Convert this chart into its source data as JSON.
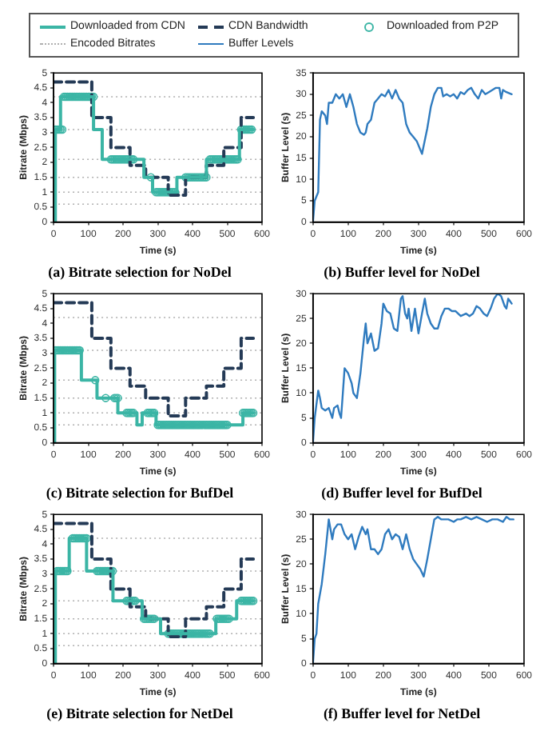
{
  "chart_data": [
    {
      "type": "step",
      "title": "(a) Bitrate selection for NoDel",
      "xlabel": "Time (s)",
      "ylabel": "Bitrate (Mbps)",
      "xlim": [
        0,
        600
      ],
      "xticks": [
        0,
        100,
        200,
        300,
        400,
        500,
        600
      ],
      "ylim": [
        0,
        5
      ],
      "yticks": [
        0,
        0.5,
        1,
        1.5,
        2,
        2.5,
        3,
        3.5,
        4,
        4.5,
        5
      ],
      "legend": "top",
      "ref_lines": [
        {
          "axis": "y",
          "value": 0.6,
          "label": "Encoded Bitrates",
          "color": "#b0b0b0",
          "line_style": "dotted"
        },
        {
          "axis": "y",
          "value": 1,
          "color": "#b0b0b0",
          "line_style": "dotted"
        },
        {
          "axis": "y",
          "value": 1.5,
          "color": "#b0b0b0",
          "line_style": "dotted"
        },
        {
          "axis": "y",
          "value": 2.1,
          "color": "#b0b0b0",
          "line_style": "dotted"
        },
        {
          "axis": "y",
          "value": 3.1,
          "color": "#b0b0b0",
          "line_style": "dotted"
        },
        {
          "axis": "y",
          "value": 4.2,
          "color": "#b0b0b0",
          "line_style": "dotted"
        }
      ],
      "series": [
        {
          "name": "Downloaded from CDN",
          "color": "#3bb5a5",
          "line_style": "solid",
          "x": [
            0,
            5,
            20,
            115,
            140,
            260,
            285,
            355,
            440,
            535,
            575
          ],
          "values": [
            0,
            3.1,
            4.2,
            3.1,
            2.1,
            1.5,
            1,
            1.5,
            2.1,
            3.1,
            3.1
          ]
        },
        {
          "name": "CDN Bandwidth",
          "color": "#243a56",
          "line_style": "dashed",
          "x": [
            0,
            110,
            165,
            220,
            265,
            330,
            380,
            440,
            490,
            540,
            575
          ],
          "values": [
            4.7,
            3.5,
            2.5,
            1.9,
            1.5,
            0.9,
            1.5,
            1.9,
            2.5,
            3.5,
            3.5
          ]
        },
        {
          "name": "Downloaded from P2P",
          "type": "scatter",
          "color": "#3bb5a5",
          "marker": "circle",
          "x": [
            5,
            10,
            15,
            20,
            25,
            30,
            35,
            40,
            45,
            50,
            55,
            60,
            65,
            70,
            75,
            80,
            85,
            90,
            95,
            100,
            105,
            110,
            115,
            165,
            170,
            175,
            180,
            185,
            190,
            195,
            200,
            205,
            210,
            215,
            220,
            225,
            230,
            280,
            295,
            300,
            305,
            310,
            315,
            320,
            325,
            330,
            335,
            340,
            345,
            350,
            380,
            385,
            390,
            395,
            400,
            405,
            410,
            415,
            420,
            425,
            430,
            435,
            440,
            450,
            455,
            460,
            465,
            470,
            475,
            480,
            485,
            490,
            495,
            500,
            505,
            510,
            515,
            520,
            525,
            530,
            540,
            545,
            550,
            555,
            560,
            565,
            570
          ],
          "values": [
            3.1,
            3.1,
            3.1,
            3.1,
            3.1,
            4.2,
            4.2,
            4.2,
            4.2,
            4.2,
            4.2,
            4.2,
            4.2,
            4.2,
            4.2,
            4.2,
            4.2,
            4.2,
            4.2,
            4.2,
            4.2,
            4.2,
            4.2,
            2.1,
            2.1,
            2.1,
            2.1,
            2.1,
            2.1,
            2.1,
            2.1,
            2.1,
            2.1,
            2.1,
            2.1,
            2.1,
            2.1,
            1.5,
            1,
            1,
            1,
            1,
            1,
            1,
            1,
            1,
            1,
            1,
            1,
            1,
            1.5,
            1.5,
            1.5,
            1.5,
            1.5,
            1.5,
            1.5,
            1.5,
            1.5,
            1.5,
            1.5,
            1.5,
            1.5,
            2.1,
            2.1,
            2.1,
            2.1,
            2.1,
            2.1,
            2.1,
            2.1,
            2.1,
            2.1,
            2.1,
            2.1,
            2.1,
            2.1,
            2.1,
            2.1,
            2.1,
            3.1,
            3.1,
            3.1,
            3.1,
            3.1,
            3.1,
            3.1
          ]
        }
      ]
    },
    {
      "type": "line",
      "title": "(b) Buffer level for NoDel",
      "xlabel": "Time (s)",
      "ylabel": "Buffer Level (s)",
      "xlim": [
        0,
        600
      ],
      "xticks": [
        0,
        100,
        200,
        300,
        400,
        500,
        600
      ],
      "ylim": [
        0,
        35
      ],
      "yticks": [
        0,
        5,
        10,
        15,
        20,
        25,
        30,
        35
      ],
      "legend": "top",
      "series": [
        {
          "name": "Buffer Levels",
          "color": "#2f7bbf",
          "x": [
            0,
            5,
            15,
            20,
            25,
            35,
            40,
            45,
            55,
            65,
            75,
            85,
            95,
            105,
            115,
            125,
            135,
            145,
            150,
            155,
            165,
            175,
            185,
            195,
            205,
            215,
            225,
            235,
            245,
            255,
            265,
            275,
            285,
            295,
            305,
            310,
            315,
            325,
            335,
            345,
            355,
            365,
            370,
            380,
            390,
            400,
            410,
            420,
            430,
            440,
            450,
            460,
            470,
            480,
            490,
            500,
            510,
            520,
            530,
            535,
            540,
            550,
            565
          ],
          "values": [
            0,
            5,
            7,
            24,
            26,
            25,
            23,
            28,
            28,
            30,
            29,
            30,
            27,
            30,
            27,
            23,
            21,
            20.5,
            21,
            23,
            24,
            28,
            29,
            30,
            29.5,
            31,
            29,
            31,
            29,
            28,
            23,
            21,
            20,
            19,
            17,
            16,
            18,
            22,
            27,
            30,
            31.5,
            31.5,
            29.5,
            30,
            29.5,
            30,
            29,
            30.5,
            30,
            31,
            31.5,
            30,
            29,
            31,
            30,
            30.5,
            31,
            31.5,
            31.5,
            29,
            31,
            30.5,
            30
          ]
        }
      ]
    },
    {
      "type": "step",
      "title": "(c) Bitrate selection for BufDel",
      "xlabel": "Time (s)",
      "ylabel": "Bitrate (Mbps)",
      "xlim": [
        0,
        600
      ],
      "xticks": [
        0,
        100,
        200,
        300,
        400,
        500,
        600
      ],
      "ylim": [
        0,
        5
      ],
      "yticks": [
        0,
        0.5,
        1,
        1.5,
        2,
        2.5,
        3,
        3.5,
        4,
        4.5,
        5
      ],
      "ref_lines": [
        {
          "axis": "y",
          "value": 0.6,
          "color": "#b0b0b0",
          "line_style": "dotted"
        },
        {
          "axis": "y",
          "value": 1,
          "color": "#b0b0b0",
          "line_style": "dotted"
        },
        {
          "axis": "y",
          "value": 1.5,
          "color": "#b0b0b0",
          "line_style": "dotted"
        },
        {
          "axis": "y",
          "value": 2.1,
          "color": "#b0b0b0",
          "line_style": "dotted"
        },
        {
          "axis": "y",
          "value": 3.1,
          "color": "#b0b0b0",
          "line_style": "dotted"
        },
        {
          "axis": "y",
          "value": 4.2,
          "color": "#b0b0b0",
          "line_style": "dotted"
        }
      ],
      "series": [
        {
          "color": "#3bb5a5",
          "line_style": "solid",
          "x": [
            0,
            3,
            80,
            125,
            185,
            240,
            255,
            295,
            545,
            575
          ],
          "values": [
            0,
            3.1,
            2.1,
            1.5,
            1,
            0.6,
            1,
            0.6,
            1,
            1
          ]
        },
        {
          "color": "#243a56",
          "line_style": "dashed",
          "x": [
            0,
            110,
            165,
            220,
            265,
            330,
            380,
            440,
            490,
            540,
            575
          ],
          "values": [
            4.7,
            3.5,
            2.5,
            1.9,
            1.5,
            0.9,
            1.5,
            1.9,
            2.5,
            3.5,
            3.5
          ]
        },
        {
          "type": "scatter",
          "color": "#3bb5a5",
          "marker": "circle",
          "x": [
            5,
            10,
            15,
            20,
            25,
            30,
            35,
            40,
            45,
            50,
            55,
            60,
            65,
            70,
            75,
            120,
            150,
            175,
            180,
            185,
            210,
            215,
            220,
            225,
            230,
            270,
            275,
            280,
            285,
            290,
            300,
            305,
            310,
            315,
            320,
            325,
            330,
            335,
            340,
            345,
            350,
            355,
            360,
            365,
            370,
            375,
            380,
            385,
            390,
            395,
            400,
            405,
            410,
            415,
            420,
            425,
            430,
            435,
            440,
            445,
            450,
            455,
            460,
            465,
            470,
            475,
            480,
            485,
            490,
            495,
            500,
            545,
            550,
            555,
            560,
            565,
            570,
            575
          ],
          "values": [
            3.1,
            3.1,
            3.1,
            3.1,
            3.1,
            3.1,
            3.1,
            3.1,
            3.1,
            3.1,
            3.1,
            3.1,
            3.1,
            3.1,
            3.1,
            2.1,
            1.5,
            1.5,
            1.5,
            1.5,
            1,
            1,
            1,
            1,
            1,
            1,
            1,
            1,
            1,
            1,
            0.6,
            0.6,
            0.6,
            0.6,
            0.6,
            0.6,
            0.6,
            0.6,
            0.6,
            0.6,
            0.6,
            0.6,
            0.6,
            0.6,
            0.6,
            0.6,
            0.6,
            0.6,
            0.6,
            0.6,
            0.6,
            0.6,
            0.6,
            0.6,
            0.6,
            0.6,
            0.6,
            0.6,
            0.6,
            0.6,
            0.6,
            0.6,
            0.6,
            0.6,
            0.6,
            0.6,
            0.6,
            0.6,
            0.6,
            0.6,
            0.6,
            1,
            1,
            1,
            1,
            1,
            1,
            1
          ]
        }
      ]
    },
    {
      "type": "line",
      "title": "(d) Buffer level for BufDel",
      "xlabel": "Time (s)",
      "ylabel": "Buffer Level (s)",
      "xlim": [
        0,
        600
      ],
      "xticks": [
        0,
        100,
        200,
        300,
        400,
        500,
        600
      ],
      "ylim": [
        0,
        30
      ],
      "yticks": [
        0,
        5,
        10,
        15,
        20,
        25,
        30
      ],
      "series": [
        {
          "color": "#2f7bbf",
          "x": [
            0,
            5,
            15,
            20,
            25,
            35,
            45,
            55,
            60,
            70,
            75,
            80,
            85,
            90,
            100,
            110,
            115,
            125,
            135,
            145,
            150,
            155,
            165,
            175,
            185,
            195,
            200,
            210,
            220,
            230,
            240,
            250,
            255,
            262,
            268,
            272,
            280,
            290,
            300,
            310,
            318,
            325,
            335,
            345,
            355,
            365,
            375,
            385,
            395,
            405,
            420,
            435,
            445,
            455,
            465,
            475,
            485,
            495,
            505,
            515,
            525,
            535,
            545,
            550,
            555,
            560,
            565
          ],
          "values": [
            0,
            5,
            10.5,
            9,
            7,
            6.5,
            7,
            5,
            7,
            7.5,
            6,
            5,
            10,
            15,
            14,
            12,
            10,
            9,
            14,
            21,
            24,
            20,
            22,
            18.5,
            19,
            24,
            28,
            26.5,
            26,
            23,
            22.5,
            29,
            29.5,
            26,
            25,
            27,
            22.5,
            27,
            22,
            26,
            29,
            26,
            24,
            23,
            23,
            25.5,
            27,
            27,
            26.5,
            26.5,
            25.5,
            26,
            25.5,
            26,
            27.5,
            27,
            26,
            25.5,
            27,
            29,
            30,
            29.5,
            27.5,
            27,
            29,
            28.5,
            28
          ]
        }
      ]
    },
    {
      "type": "step",
      "title": "(e) Bitrate selection for NetDel",
      "xlabel": "Time (s)",
      "ylabel": "Bitrate (Mbps)",
      "xlim": [
        0,
        600
      ],
      "xticks": [
        0,
        100,
        200,
        300,
        400,
        500,
        600
      ],
      "ylim": [
        0,
        5
      ],
      "yticks": [
        0,
        0.5,
        1,
        1.5,
        2,
        2.5,
        3,
        3.5,
        4,
        4.5,
        5
      ],
      "ref_lines": [
        {
          "axis": "y",
          "value": 0.6,
          "color": "#b0b0b0",
          "line_style": "dotted"
        },
        {
          "axis": "y",
          "value": 1,
          "color": "#b0b0b0",
          "line_style": "dotted"
        },
        {
          "axis": "y",
          "value": 1.5,
          "color": "#b0b0b0",
          "line_style": "dotted"
        },
        {
          "axis": "y",
          "value": 2.1,
          "color": "#b0b0b0",
          "line_style": "dotted"
        },
        {
          "axis": "y",
          "value": 3.1,
          "color": "#b0b0b0",
          "line_style": "dotted"
        },
        {
          "axis": "y",
          "value": 4.2,
          "color": "#b0b0b0",
          "line_style": "dotted"
        }
      ],
      "series": [
        {
          "color": "#3bb5a5",
          "line_style": "solid",
          "x": [
            0,
            5,
            45,
            95,
            171,
            255,
            308,
            467,
            527,
            575
          ],
          "values": [
            0,
            3.1,
            4.2,
            3.1,
            2.1,
            1.5,
            1,
            1.5,
            2.1,
            2.1
          ]
        },
        {
          "color": "#243a56",
          "line_style": "dashed",
          "x": [
            0,
            110,
            165,
            220,
            265,
            330,
            380,
            440,
            490,
            540,
            575
          ],
          "values": [
            4.7,
            3.5,
            2.5,
            1.9,
            1.5,
            0.9,
            1.5,
            1.9,
            2.5,
            3.5,
            3.5
          ]
        },
        {
          "type": "scatter",
          "color": "#3bb5a5",
          "marker": "circle",
          "x": [
            10,
            15,
            20,
            25,
            30,
            35,
            40,
            55,
            60,
            65,
            70,
            75,
            80,
            85,
            90,
            95,
            125,
            130,
            135,
            140,
            145,
            150,
            155,
            160,
            165,
            170,
            210,
            215,
            220,
            225,
            230,
            235,
            260,
            265,
            270,
            275,
            280,
            285,
            290,
            330,
            335,
            340,
            345,
            350,
            355,
            360,
            365,
            370,
            375,
            380,
            385,
            390,
            395,
            400,
            405,
            410,
            415,
            420,
            425,
            430,
            435,
            440,
            445,
            450,
            470,
            475,
            480,
            485,
            490,
            495,
            500,
            505,
            540,
            545,
            550,
            555,
            560,
            565,
            570,
            575
          ],
          "values": [
            3.1,
            3.1,
            3.1,
            3.1,
            3.1,
            3.1,
            3.1,
            4.2,
            4.2,
            4.2,
            4.2,
            4.2,
            4.2,
            4.2,
            4.2,
            4.2,
            3.1,
            3.1,
            3.1,
            3.1,
            3.1,
            3.1,
            3.1,
            3.1,
            3.1,
            3.1,
            2.1,
            2.1,
            2.1,
            2.1,
            2.1,
            2.1,
            1.5,
            1.5,
            1.5,
            1.5,
            1.5,
            1.5,
            1.5,
            1,
            1,
            1,
            1,
            1,
            1,
            1,
            1,
            1,
            1,
            1,
            1,
            1,
            1,
            1,
            1,
            1,
            1,
            1,
            1,
            1,
            1,
            1,
            1,
            1,
            1.5,
            1.5,
            1.5,
            1.5,
            1.5,
            1.5,
            1.5,
            1.5,
            2.1,
            2.1,
            2.1,
            2.1,
            2.1,
            2.1,
            2.1,
            2.1
          ]
        }
      ]
    },
    {
      "type": "line",
      "title": "(f) Buffer level for NetDel",
      "xlabel": "Time (s)",
      "ylabel": "Buffer Level (s)",
      "xlim": [
        0,
        600
      ],
      "xticks": [
        0,
        100,
        200,
        300,
        400,
        500,
        600
      ],
      "ylim": [
        0,
        30
      ],
      "yticks": [
        0,
        5,
        10,
        15,
        20,
        25,
        30
      ],
      "series": [
        {
          "color": "#2f7bbf",
          "x": [
            0,
            5,
            10,
            15,
            25,
            35,
            45,
            55,
            60,
            70,
            80,
            90,
            100,
            110,
            120,
            130,
            140,
            150,
            155,
            165,
            175,
            185,
            195,
            205,
            215,
            225,
            235,
            245,
            255,
            265,
            275,
            285,
            295,
            305,
            315,
            325,
            335,
            345,
            355,
            365,
            375,
            385,
            400,
            410,
            420,
            435,
            450,
            465,
            480,
            495,
            510,
            525,
            540,
            550,
            560,
            570
          ],
          "values": [
            0,
            5,
            6,
            12,
            16,
            22,
            29,
            25,
            27,
            28,
            28,
            26,
            25,
            26,
            23,
            25.5,
            27.5,
            26,
            27,
            23,
            23,
            22,
            23,
            26,
            27,
            25,
            26,
            25.5,
            23,
            26,
            23,
            21,
            20,
            19,
            17.5,
            21,
            25,
            29,
            29.5,
            29,
            29,
            29,
            28.5,
            29,
            29,
            29.5,
            29,
            29.5,
            29,
            28.5,
            29,
            29,
            28.5,
            29.5,
            29,
            29
          ]
        }
      ]
    }
  ]
}
